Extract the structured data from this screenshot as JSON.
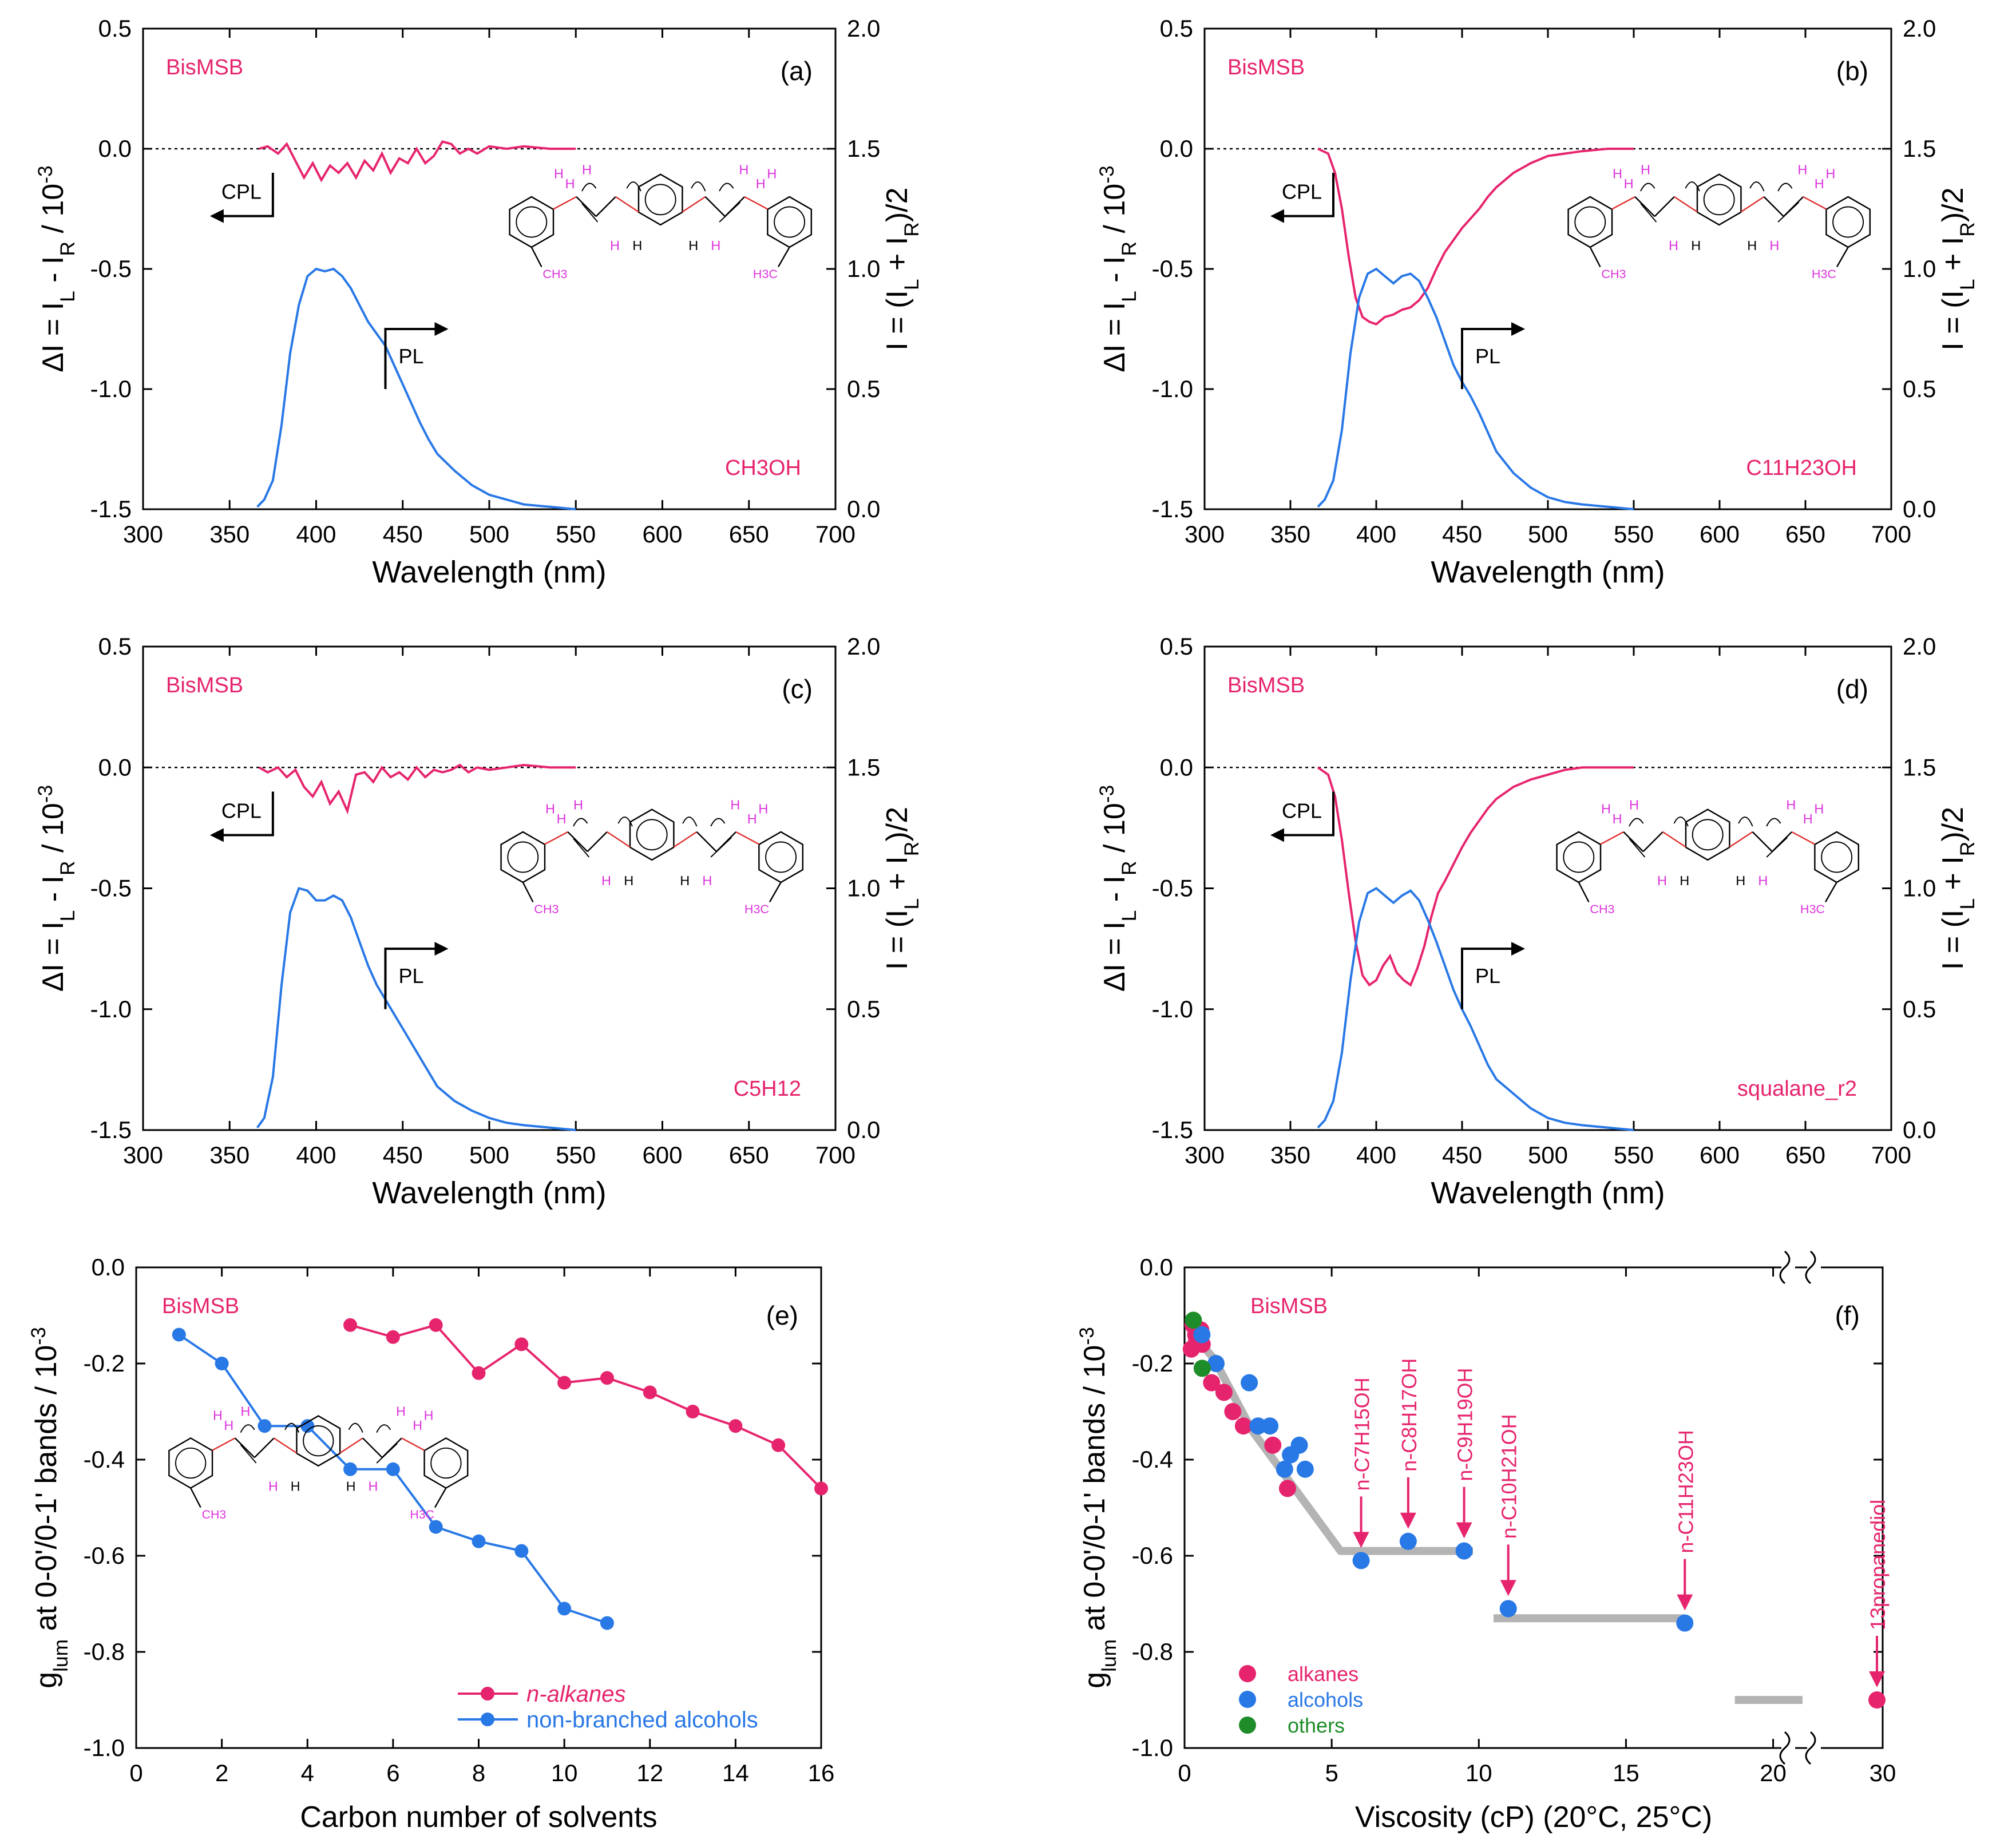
{
  "figure": {
    "molecule_labels": {
      "h": "H",
      "ch3": "CH3",
      "h3c": "H3C"
    },
    "colors": {
      "pink": "#e6246e",
      "blue": "#2878e6",
      "green": "#1e8c28",
      "axis": "#000000",
      "guide": "#b4b4b4",
      "hatom": "#dc32dc"
    }
  },
  "chart_data": [
    {
      "panel": "(a)",
      "type": "line",
      "title": "BisMSB",
      "sample": "CH3OH",
      "xlabel": "Wavelength (nm)",
      "ylabel": "ΔI = I_L - I_R / 10^-3",
      "y2label": "I = (I_L + I_R)/2",
      "xlim": [
        300,
        700
      ],
      "ylim": [
        -1.5,
        0.5
      ],
      "y2lim": [
        0.0,
        2.0
      ],
      "xticks": [
        "300",
        "350",
        "400",
        "450",
        "500",
        "550",
        "600",
        "650",
        "700"
      ],
      "yticks": [
        "0.5",
        "0.0",
        "-0.5",
        "-1.0",
        "-1.5"
      ],
      "y2ticks": [
        "2.0",
        "1.5",
        "1.0",
        "0.5",
        "0.0"
      ],
      "arrow_labels": {
        "cpl": "CPL",
        "pl": "PL"
      },
      "series": [
        {
          "name": "CPL (ΔI)",
          "axis": "left",
          "color": "#e6246e",
          "x": [
            367,
            372,
            378,
            383,
            388,
            393,
            398,
            403,
            408,
            413,
            418,
            423,
            428,
            433,
            438,
            443,
            448,
            453,
            458,
            463,
            468,
            473,
            478,
            483,
            488,
            493,
            500,
            510,
            520,
            535,
            550
          ],
          "y": [
            0.0,
            0.01,
            -0.02,
            0.02,
            -0.05,
            -0.12,
            -0.06,
            -0.13,
            -0.07,
            -0.1,
            -0.06,
            -0.12,
            -0.05,
            -0.09,
            -0.02,
            -0.1,
            -0.04,
            -0.06,
            0.0,
            -0.06,
            -0.03,
            0.03,
            0.02,
            -0.02,
            0.0,
            -0.02,
            0.01,
            0.0,
            0.01,
            0.0,
            0.0
          ]
        },
        {
          "name": "PL (I)",
          "axis": "right",
          "color": "#2878e6",
          "x": [
            366,
            370,
            375,
            380,
            385,
            390,
            395,
            400,
            405,
            410,
            415,
            420,
            425,
            430,
            435,
            440,
            445,
            450,
            455,
            460,
            465,
            470,
            480,
            490,
            500,
            510,
            520,
            535,
            550
          ],
          "y": [
            0.01,
            0.04,
            0.12,
            0.35,
            0.65,
            0.85,
            0.97,
            1.0,
            0.99,
            1.0,
            0.97,
            0.92,
            0.85,
            0.78,
            0.73,
            0.68,
            0.6,
            0.52,
            0.44,
            0.36,
            0.29,
            0.23,
            0.16,
            0.1,
            0.06,
            0.04,
            0.02,
            0.01,
            0.0
          ]
        }
      ]
    },
    {
      "panel": "(b)",
      "type": "line",
      "title": "BisMSB",
      "sample": "C11H23OH",
      "xlabel": "Wavelength (nm)",
      "ylabel": "ΔI = I_L - I_R / 10^-3",
      "y2label": "I = (I_L + I_R)/2",
      "xlim": [
        300,
        700
      ],
      "ylim": [
        -1.5,
        0.5
      ],
      "y2lim": [
        0.0,
        2.0
      ],
      "xticks": [
        "300",
        "350",
        "400",
        "450",
        "500",
        "550",
        "600",
        "650",
        "700"
      ],
      "yticks": [
        "0.5",
        "0.0",
        "-0.5",
        "-1.0",
        "-1.5"
      ],
      "y2ticks": [
        "2.0",
        "1.5",
        "1.0",
        "0.5",
        "0.0"
      ],
      "arrow_labels": {
        "cpl": "CPL",
        "pl": "PL"
      },
      "series": [
        {
          "name": "CPL (ΔI)",
          "axis": "left",
          "color": "#e6246e",
          "x": [
            366,
            372,
            376,
            380,
            384,
            388,
            392,
            396,
            400,
            405,
            410,
            415,
            420,
            425,
            430,
            435,
            440,
            445,
            450,
            455,
            460,
            465,
            470,
            480,
            490,
            500,
            510,
            520,
            535,
            550
          ],
          "y": [
            0.0,
            -0.02,
            -0.1,
            -0.25,
            -0.45,
            -0.62,
            -0.7,
            -0.72,
            -0.73,
            -0.7,
            -0.69,
            -0.67,
            -0.66,
            -0.63,
            -0.58,
            -0.5,
            -0.43,
            -0.38,
            -0.33,
            -0.29,
            -0.25,
            -0.2,
            -0.16,
            -0.1,
            -0.06,
            -0.03,
            -0.02,
            -0.01,
            0.0,
            0.0
          ]
        },
        {
          "name": "PL (I)",
          "axis": "right",
          "color": "#2878e6",
          "x": [
            366,
            370,
            375,
            380,
            385,
            390,
            395,
            400,
            405,
            410,
            415,
            420,
            425,
            430,
            435,
            440,
            445,
            450,
            455,
            460,
            465,
            470,
            480,
            490,
            500,
            510,
            520,
            535,
            550
          ],
          "y": [
            0.01,
            0.04,
            0.12,
            0.33,
            0.65,
            0.88,
            0.98,
            1.0,
            0.97,
            0.94,
            0.97,
            0.98,
            0.95,
            0.88,
            0.8,
            0.7,
            0.6,
            0.53,
            0.47,
            0.4,
            0.32,
            0.24,
            0.15,
            0.09,
            0.05,
            0.03,
            0.02,
            0.01,
            0.0
          ]
        }
      ]
    },
    {
      "panel": "(c)",
      "type": "line",
      "title": "BisMSB",
      "sample": "C5H12",
      "xlabel": "Wavelength (nm)",
      "ylabel": "ΔI = I_L - I_R / 10^-3",
      "y2label": "I = (I_L + I_R)/2",
      "xlim": [
        300,
        700
      ],
      "ylim": [
        -1.5,
        0.5
      ],
      "y2lim": [
        0.0,
        2.0
      ],
      "xticks": [
        "300",
        "350",
        "400",
        "450",
        "500",
        "550",
        "600",
        "650",
        "700"
      ],
      "yticks": [
        "0.5",
        "0.0",
        "-0.5",
        "-1.0",
        "-1.5"
      ],
      "y2ticks": [
        "2.0",
        "1.5",
        "1.0",
        "0.5",
        "0.0"
      ],
      "arrow_labels": {
        "cpl": "CPL",
        "pl": "PL"
      },
      "series": [
        {
          "name": "CPL (ΔI)",
          "axis": "left",
          "color": "#e6246e",
          "x": [
            367,
            372,
            378,
            383,
            388,
            393,
            398,
            403,
            408,
            413,
            418,
            423,
            428,
            433,
            438,
            443,
            448,
            453,
            458,
            463,
            468,
            473,
            478,
            483,
            488,
            493,
            500,
            510,
            520,
            535,
            550
          ],
          "y": [
            0.0,
            -0.02,
            0.0,
            -0.04,
            -0.01,
            -0.08,
            -0.12,
            -0.06,
            -0.15,
            -0.1,
            -0.18,
            -0.03,
            -0.02,
            -0.06,
            0.0,
            -0.04,
            -0.02,
            -0.05,
            0.0,
            -0.04,
            -0.01,
            -0.02,
            -0.01,
            0.01,
            -0.02,
            0.0,
            -0.01,
            0.0,
            0.01,
            0.0,
            0.0
          ]
        },
        {
          "name": "PL (I)",
          "axis": "right",
          "color": "#2878e6",
          "x": [
            366,
            370,
            375,
            380,
            385,
            390,
            395,
            400,
            405,
            410,
            415,
            420,
            425,
            430,
            435,
            440,
            445,
            450,
            455,
            460,
            465,
            470,
            480,
            490,
            500,
            510,
            520,
            535,
            550
          ],
          "y": [
            0.01,
            0.05,
            0.22,
            0.6,
            0.9,
            1.0,
            0.99,
            0.95,
            0.95,
            0.97,
            0.95,
            0.88,
            0.78,
            0.68,
            0.6,
            0.54,
            0.48,
            0.42,
            0.36,
            0.3,
            0.24,
            0.18,
            0.12,
            0.08,
            0.05,
            0.03,
            0.02,
            0.01,
            0.0
          ]
        }
      ]
    },
    {
      "panel": "(d)",
      "type": "line",
      "title": "BisMSB",
      "sample": "squalane_r2",
      "xlabel": "Wavelength (nm)",
      "ylabel": "ΔI = I_L - I_R / 10^-3",
      "y2label": "I = (I_L + I_R)/2",
      "xlim": [
        300,
        700
      ],
      "ylim": [
        -1.5,
        0.5
      ],
      "y2lim": [
        0.0,
        2.0
      ],
      "xticks": [
        "300",
        "350",
        "400",
        "450",
        "500",
        "550",
        "600",
        "650",
        "700"
      ],
      "yticks": [
        "0.5",
        "0.0",
        "-0.5",
        "-1.0",
        "-1.5"
      ],
      "y2ticks": [
        "2.0",
        "1.5",
        "1.0",
        "0.5",
        "0.0"
      ],
      "arrow_labels": {
        "cpl": "CPL",
        "pl": "PL"
      },
      "series": [
        {
          "name": "CPL (ΔI)",
          "axis": "left",
          "color": "#e6246e",
          "x": [
            366,
            372,
            376,
            380,
            384,
            388,
            392,
            396,
            400,
            404,
            408,
            412,
            416,
            420,
            424,
            428,
            432,
            436,
            440,
            445,
            450,
            455,
            460,
            465,
            470,
            480,
            490,
            500,
            510,
            520,
            535,
            550
          ],
          "y": [
            0.0,
            -0.03,
            -0.12,
            -0.3,
            -0.52,
            -0.72,
            -0.86,
            -0.9,
            -0.88,
            -0.82,
            -0.78,
            -0.85,
            -0.88,
            -0.9,
            -0.83,
            -0.74,
            -0.62,
            -0.52,
            -0.47,
            -0.4,
            -0.33,
            -0.27,
            -0.22,
            -0.17,
            -0.13,
            -0.08,
            -0.05,
            -0.03,
            -0.01,
            0.0,
            0.0,
            0.0
          ]
        },
        {
          "name": "PL (I)",
          "axis": "right",
          "color": "#2878e6",
          "x": [
            366,
            370,
            375,
            380,
            385,
            390,
            395,
            400,
            405,
            410,
            415,
            420,
            425,
            430,
            435,
            440,
            445,
            450,
            455,
            460,
            465,
            470,
            480,
            490,
            500,
            510,
            520,
            535,
            550
          ],
          "y": [
            0.01,
            0.04,
            0.12,
            0.32,
            0.62,
            0.86,
            0.98,
            1.0,
            0.97,
            0.94,
            0.97,
            0.99,
            0.95,
            0.87,
            0.78,
            0.68,
            0.58,
            0.5,
            0.43,
            0.35,
            0.27,
            0.21,
            0.15,
            0.09,
            0.05,
            0.03,
            0.02,
            0.01,
            0.0
          ]
        }
      ]
    },
    {
      "panel": "(e)",
      "type": "line",
      "title": "BisMSB",
      "xlabel": "Carbon number of solvents",
      "ylabel": "g_lum at 0-0'/0-1' bands / 10^-3",
      "xlim": [
        0,
        16
      ],
      "ylim": [
        -1.0,
        0.0
      ],
      "xticks": [
        "0",
        "2",
        "4",
        "6",
        "8",
        "10",
        "12",
        "14",
        "16"
      ],
      "yticks": [
        "0.0",
        "-0.2",
        "-0.4",
        "-0.6",
        "-0.8",
        "-1.0"
      ],
      "legend_placement": "bottom-right",
      "series": [
        {
          "name": "n-alkanes",
          "color": "#e6246e",
          "x": [
            5,
            6,
            7,
            8,
            9,
            10,
            11,
            12,
            13,
            14,
            15,
            16
          ],
          "y": [
            -0.12,
            -0.145,
            -0.12,
            -0.22,
            -0.16,
            -0.24,
            -0.23,
            -0.26,
            -0.3,
            -0.33,
            -0.37,
            -0.46
          ]
        },
        {
          "name": "non-branched alcohols",
          "color": "#2878e6",
          "x": [
            1,
            2,
            3,
            4,
            5,
            6,
            7,
            8,
            9,
            10,
            11
          ],
          "y": [
            -0.14,
            -0.2,
            -0.33,
            -0.33,
            -0.42,
            -0.42,
            -0.54,
            -0.57,
            -0.59,
            -0.71,
            -0.74
          ]
        }
      ]
    },
    {
      "panel": "(f)",
      "type": "scatter",
      "title": "BisMSB",
      "xlabel": "Viscosity (cP) (20°C, 25°C)",
      "ylabel": "g_lum at 0-0'/0-1' bands / 10^-3",
      "xlim": [
        0,
        30
      ],
      "ylim": [
        -1.0,
        0.0
      ],
      "axis_break": [
        21,
        29
      ],
      "xticks": [
        "0",
        "5",
        "10",
        "15",
        "20",
        "30"
      ],
      "yticks": [
        "0.0",
        "-0.2",
        "-0.4",
        "-0.6",
        "-0.8",
        "-1.0"
      ],
      "legend_placement": "bottom-left",
      "series": [
        {
          "name": "alkanes",
          "color": "#e6246e",
          "x": [
            0.23,
            0.29,
            0.38,
            0.41,
            0.55,
            0.6,
            0.92,
            1.34,
            1.64,
            2.0,
            3.0,
            3.5,
            29.5
          ],
          "y": [
            -0.17,
            -0.12,
            -0.14,
            -0.15,
            -0.13,
            -0.16,
            -0.24,
            -0.26,
            -0.3,
            -0.33,
            -0.37,
            -0.46,
            -0.9
          ]
        },
        {
          "name": "alcohols",
          "color": "#2878e6",
          "x": [
            0.59,
            1.07,
            2.2,
            2.5,
            2.9,
            3.4,
            3.6,
            3.9,
            4.1,
            6.0,
            7.6,
            9.5,
            11.0,
            17.0
          ],
          "y": [
            -0.14,
            -0.2,
            -0.24,
            -0.33,
            -0.33,
            -0.42,
            -0.39,
            -0.37,
            -0.42,
            -0.61,
            -0.57,
            -0.59,
            -0.71,
            -0.74
          ]
        },
        {
          "name": "others",
          "color": "#1e8c28",
          "x": [
            0.3,
            0.6
          ],
          "y": [
            -0.11,
            -0.21
          ]
        }
      ],
      "guide_segments": [
        {
          "x": [
            0.3,
            1.0,
            2.3,
            5.3,
            9.8
          ],
          "y": [
            -0.14,
            -0.19,
            -0.34,
            -0.59,
            -0.59
          ]
        },
        {
          "x": [
            10.5,
            17.0
          ],
          "y": [
            -0.73,
            -0.73
          ]
        },
        {
          "x": [
            18.7,
            21.0
          ],
          "y": [
            -0.9,
            -0.9
          ]
        },
        {
          "x": [
            29.0,
            30.0
          ],
          "y": [
            -0.9,
            -0.9
          ]
        }
      ],
      "annotations": [
        {
          "text": "n-C7H15OH",
          "x": 6.0,
          "y": -0.61
        },
        {
          "text": "n-C8H17OH",
          "x": 7.6,
          "y": -0.57
        },
        {
          "text": "n-C9H19OH",
          "x": 9.5,
          "y": -0.59
        },
        {
          "text": "n-C10H21OH",
          "x": 11.0,
          "y": -0.71
        },
        {
          "text": "n-C11H23OH",
          "x": 17.0,
          "y": -0.74
        },
        {
          "text": "13propanediol",
          "x": 29.5,
          "y": -0.9
        }
      ]
    }
  ]
}
